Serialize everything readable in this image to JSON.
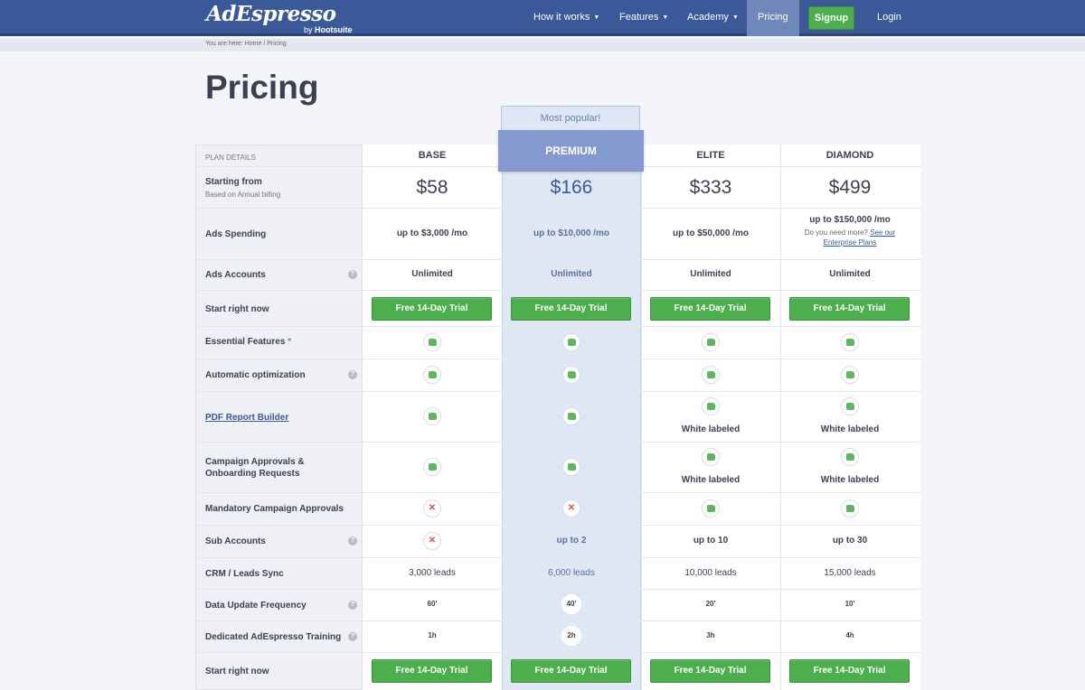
{
  "header": {
    "logo_main": "AdEspresso",
    "logo_by": "by",
    "logo_brand": "Hootsuite",
    "nav": [
      "How it works",
      "Features",
      "Academy",
      "Pricing"
    ],
    "signup": "Signup",
    "login": "Login"
  },
  "breadcrumb": "You are here: Home / Pricing",
  "page_title": "Pricing",
  "badge": "Most popular!",
  "table": {
    "plan_details_label": "PLAN DETAILS",
    "plans": [
      "BASE",
      "PREMIUM",
      "ELITE",
      "DIAMOND"
    ],
    "starting_from": "Starting from",
    "billing_note": "Based on Annual billing",
    "prices": [
      "$58",
      "$166",
      "$333",
      "$499"
    ],
    "rows": {
      "ads_spending": "Ads Spending",
      "ads_accounts": "Ads Accounts",
      "start_now": "Start right now",
      "essential": "Essential Features",
      "essential_star": "*",
      "auto_opt": "Automatic optimization",
      "pdf": "PDF Report Builder",
      "approvals": "Campaign Approvals &",
      "approvals2": "Onboarding Requests",
      "mandatory": "Mandatory Campaign Approvals",
      "sub_accounts": "Sub Accounts",
      "crm": "CRM / Leads Sync",
      "update_freq": "Data Update Frequency",
      "training": "Dedicated AdEspresso Training",
      "start_now2": "Start right now"
    },
    "spending": [
      "up to $3,000 /mo",
      "up to $10,000 /mo",
      "up to $50,000 /mo",
      "up to $150,000 /mo"
    ],
    "more_note": "Do you need more?",
    "more_link": "See our",
    "more_link2": "Enterprise Plans",
    "accounts": [
      "Unlimited",
      "Unlimited",
      "Unlimited",
      "Unlimited"
    ],
    "trial": "Free 14-Day Trial",
    "white_labeled": "White labeled",
    "cross": "✕",
    "sub": [
      "up to 2",
      "up to 10",
      "up to 30"
    ],
    "crm_vals": [
      "3,000 leads",
      "6,000 leads",
      "10,000 leads",
      "15,000 leads"
    ],
    "freq_vals": [
      "60'",
      "40'",
      "20'",
      "10'"
    ],
    "train_vals": [
      "1h",
      "2h",
      "3h",
      "4h"
    ],
    "help": "?"
  }
}
